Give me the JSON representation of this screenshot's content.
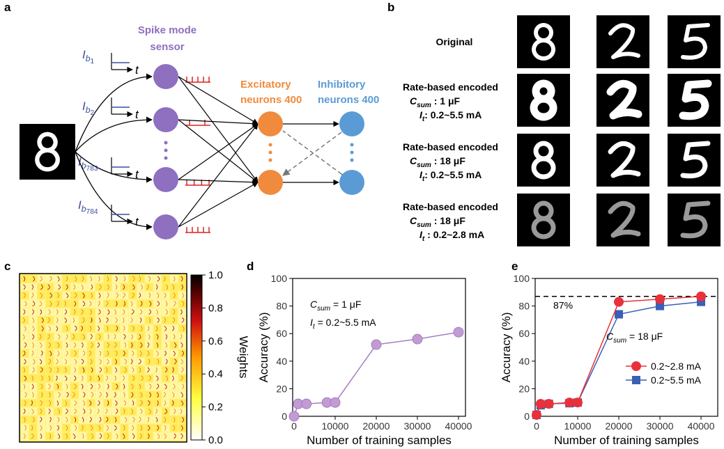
{
  "panel_labels": [
    "a",
    "b",
    "c",
    "d",
    "e"
  ],
  "diagram": {
    "sensor_label": [
      "Spike mode",
      "sensor"
    ],
    "current_labels": [
      {
        "symbol": "I",
        "subscript": "b",
        "index": "1"
      },
      {
        "symbol": "I",
        "subscript": "b",
        "index": "2"
      },
      {
        "symbol": "I",
        "subscript": "b",
        "index": "783"
      },
      {
        "symbol": "I",
        "subscript": "b",
        "index": "784"
      }
    ],
    "axis_var": "t",
    "excitatory_label": [
      "Excitatory",
      "neurons 400"
    ],
    "inhibitory_label": [
      "Inhibitory",
      "neurons  400"
    ]
  },
  "encoding": {
    "rows": [
      {
        "title": "Original"
      },
      {
        "title": "Rate-based encoded",
        "params": [
          {
            "symbol": "C",
            "subscript": "sum",
            "text": " : 1 μF"
          },
          {
            "symbol": "I",
            "subscript": "t",
            "text": ":  0.2~5.5 mA"
          }
        ]
      },
      {
        "title": "Rate-based encoded",
        "params": [
          {
            "symbol": "C",
            "subscript": "sum",
            "text": " : 18 μF"
          },
          {
            "symbol": "I",
            "subscript": "t",
            "text": ": 0.2~5.5 mA"
          }
        ]
      },
      {
        "title": "Rate-based encoded",
        "params": [
          {
            "symbol": "C",
            "subscript": "sum",
            "text": " : 18 μF"
          },
          {
            "symbol": "I",
            "subscript": "t",
            "text": " : 0.2~2.8 mA"
          }
        ]
      }
    ]
  },
  "heatmap": {
    "colorbar_label": "Weights",
    "clim": [
      0,
      1
    ],
    "ticks": [
      {
        "value": 0,
        "label": "0.0"
      },
      0.2,
      0.4,
      0.6,
      0.8,
      {
        "value": 1,
        "label": "1.0"
      }
    ]
  },
  "chart_data": [
    {
      "type": "line",
      "x_label": "Number of training samples",
      "y_label": "Accuracy (%)",
      "x": [
        0,
        1000,
        3000,
        8000,
        10000,
        20000,
        30000,
        40000
      ],
      "values": [
        0,
        9,
        9,
        10,
        10,
        52,
        56,
        61
      ],
      "color": "#c39bd3",
      "marker": "circle",
      "xlim": [
        -340,
        41700
      ],
      "ylim": [
        0,
        100
      ],
      "xticks": [
        0,
        10000,
        20000,
        30000,
        40000
      ],
      "yticks": [
        0,
        20,
        40,
        60,
        80,
        100
      ],
      "annotations": [
        {
          "symbol": "C",
          "subscript": "sum",
          "text": " = 1 μF"
        },
        {
          "symbol": "I",
          "subscript": "t",
          "text": " = 0.2~5.5 mA"
        }
      ]
    },
    {
      "type": "line",
      "x_label": "Number of training samples",
      "y_label": "Accuracy (%)",
      "x": [
        0,
        1000,
        3000,
        8000,
        10000,
        20000,
        30000,
        40000
      ],
      "series": [
        {
          "name": "0.2~2.8 mA",
          "color": "#e8313a",
          "marker": "circle",
          "values": [
            1,
            9,
            9,
            10,
            10,
            83,
            85,
            87
          ]
        },
        {
          "name": "0.2~5.5 mA",
          "color": "#3a5fb5",
          "marker": "square",
          "values": [
            1,
            8,
            9,
            9.5,
            10,
            74,
            80,
            83
          ]
        }
      ],
      "xlim": [
        -340,
        44060
      ],
      "ylim": [
        0,
        100
      ],
      "xticks": [
        0,
        10000,
        20000,
        30000,
        40000
      ],
      "yticks": [
        0,
        20,
        40,
        60,
        80,
        100
      ],
      "hline": {
        "value": 87,
        "label": "87%"
      },
      "legend": "lower right",
      "annotations": [
        {
          "symbol": "C",
          "subscript": "sum",
          "text": " = 18 μF"
        }
      ]
    }
  ]
}
